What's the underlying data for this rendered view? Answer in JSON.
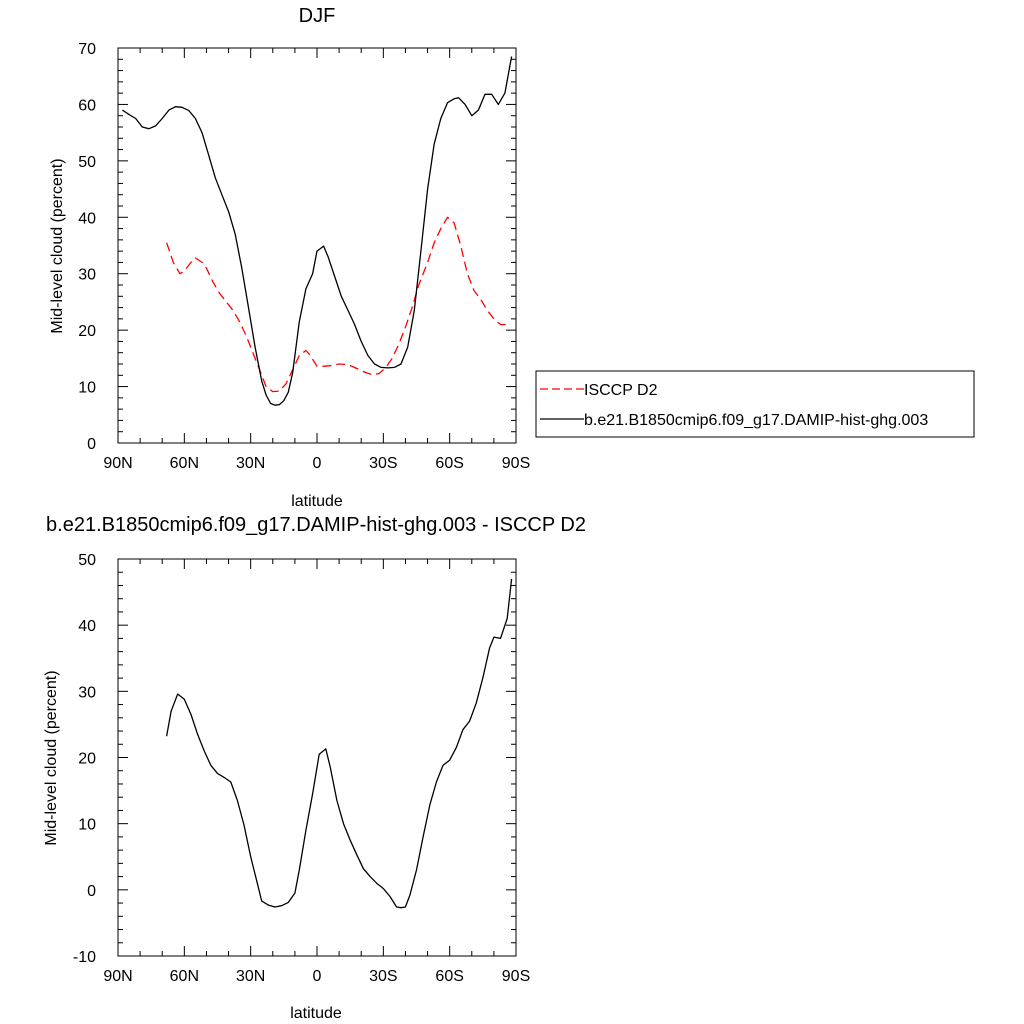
{
  "chart_data": [
    {
      "type": "line",
      "title": "DJF",
      "xlabel": "latitude",
      "ylabel": "Mid-level cloud (percent)",
      "xlim": [
        -90,
        90
      ],
      "ylim": [
        0,
        70
      ],
      "x_ticks": [
        -90,
        -60,
        -30,
        0,
        30,
        60,
        90
      ],
      "x_tick_labels": [
        "90N",
        "60N",
        "30N",
        "0",
        "30S",
        "60S",
        "90S"
      ],
      "y_ticks": [
        0,
        10,
        20,
        30,
        40,
        50,
        60,
        70
      ],
      "y_tick_labels": [
        "0",
        "10",
        "20",
        "30",
        "40",
        "50",
        "60",
        "70"
      ],
      "legend_position": "right",
      "series": [
        {
          "name": "ISCCP D2",
          "color": "#ff0000",
          "dash": "dashed",
          "points": [
            [
              -68,
              35.5
            ],
            [
              -65,
              32
            ],
            [
              -62,
              30
            ],
            [
              -60,
              30.5
            ],
            [
              -57,
              32
            ],
            [
              -55,
              32.8
            ],
            [
              -52,
              32
            ],
            [
              -50,
              31
            ],
            [
              -47,
              28.5
            ],
            [
              -44,
              26.5
            ],
            [
              -41,
              25
            ],
            [
              -38,
              23.5
            ],
            [
              -35,
              21.5
            ],
            [
              -32,
              19
            ],
            [
              -29,
              16
            ],
            [
              -26,
              13
            ],
            [
              -23,
              10
            ],
            [
              -20,
              9.1
            ],
            [
              -17,
              9.2
            ],
            [
              -14,
              10.5
            ],
            [
              -11,
              13
            ],
            [
              -8,
              15.5
            ],
            [
              -5,
              16.4
            ],
            [
              -3,
              15.5
            ],
            [
              0,
              13.6
            ],
            [
              3,
              13.6
            ],
            [
              6,
              13.7
            ],
            [
              10,
              14
            ],
            [
              14,
              13.9
            ],
            [
              18,
              13.2
            ],
            [
              22,
              12.5
            ],
            [
              25,
              12.1
            ],
            [
              28,
              12.3
            ],
            [
              31,
              13.3
            ],
            [
              34,
              15
            ],
            [
              37,
              17.5
            ],
            [
              40,
              20.5
            ],
            [
              43,
              24
            ],
            [
              46,
              28
            ],
            [
              50,
              32
            ],
            [
              53,
              35.5
            ],
            [
              56,
              38
            ],
            [
              59,
              40
            ],
            [
              62,
              39
            ],
            [
              65,
              35
            ],
            [
              68,
              30
            ],
            [
              71,
              27
            ],
            [
              74,
              25.5
            ],
            [
              77,
              23.5
            ],
            [
              80,
              22
            ],
            [
              83,
              21
            ],
            [
              86,
              21
            ]
          ]
        },
        {
          "name": "b.e21.B1850cmip6.f09_g17.DAMIP-hist-ghg.003",
          "color": "#000000",
          "dash": "solid",
          "points": [
            [
              -88,
              59
            ],
            [
              -85,
              58.2
            ],
            [
              -82,
              57.5
            ],
            [
              -79,
              56
            ],
            [
              -76,
              55.7
            ],
            [
              -73,
              56.2
            ],
            [
              -70,
              57.5
            ],
            [
              -67,
              59
            ],
            [
              -64,
              59.6
            ],
            [
              -61,
              59.5
            ],
            [
              -58,
              58.9
            ],
            [
              -55,
              57.5
            ],
            [
              -52,
              55
            ],
            [
              -49,
              51
            ],
            [
              -46,
              47
            ],
            [
              -43,
              44
            ],
            [
              -40,
              41
            ],
            [
              -37,
              37
            ],
            [
              -34,
              31
            ],
            [
              -31,
              24
            ],
            [
              -28,
              17
            ],
            [
              -25,
              11
            ],
            [
              -23,
              8.5
            ],
            [
              -21,
              7
            ],
            [
              -19,
              6.7
            ],
            [
              -17,
              6.8
            ],
            [
              -15,
              7.5
            ],
            [
              -13,
              9
            ],
            [
              -11,
              12.5
            ],
            [
              -8,
              21.5
            ],
            [
              -5,
              27.3
            ],
            [
              -2,
              30
            ],
            [
              0,
              34
            ],
            [
              3,
              34.9
            ],
            [
              5,
              33
            ],
            [
              8,
              29.5
            ],
            [
              11,
              26
            ],
            [
              14,
              23.5
            ],
            [
              17,
              21
            ],
            [
              20,
              18
            ],
            [
              23,
              15.5
            ],
            [
              26,
              14
            ],
            [
              29,
              13.4
            ],
            [
              32,
              13.3
            ],
            [
              35,
              13.4
            ],
            [
              38,
              14
            ],
            [
              41,
              17
            ],
            [
              44,
              23.5
            ],
            [
              47,
              34
            ],
            [
              50,
              45
            ],
            [
              53,
              53
            ],
            [
              56,
              57.5
            ],
            [
              59,
              60.3
            ],
            [
              62,
              61
            ],
            [
              64,
              61.2
            ],
            [
              67,
              60
            ],
            [
              70,
              58
            ],
            [
              73,
              59
            ],
            [
              76,
              61.8
            ],
            [
              79,
              61.8
            ],
            [
              82,
              60
            ],
            [
              85,
              62
            ],
            [
              88,
              68.5
            ]
          ]
        }
      ]
    },
    {
      "type": "line",
      "title": "b.e21.B1850cmip6.f09_g17.DAMIP-hist-ghg.003 - ISCCP D2",
      "xlabel": "latitude",
      "ylabel": "Mid-level cloud (percent)",
      "xlim": [
        -90,
        90
      ],
      "ylim": [
        -10,
        50
      ],
      "x_ticks": [
        -90,
        -60,
        -30,
        0,
        30,
        60,
        90
      ],
      "x_tick_labels": [
        "90N",
        "60N",
        "30N",
        "0",
        "30S",
        "60S",
        "90S"
      ],
      "y_ticks": [
        -10,
        0,
        10,
        20,
        30,
        40,
        50
      ],
      "y_tick_labels": [
        "-10",
        "0",
        "10",
        "20",
        "30",
        "40",
        "50"
      ],
      "series": [
        {
          "color": "#000000",
          "dash": "solid",
          "points": [
            [
              -68,
              23.2
            ],
            [
              -66,
              27
            ],
            [
              -63,
              29.6
            ],
            [
              -60,
              28.8
            ],
            [
              -57,
              26.5
            ],
            [
              -54,
              23.5
            ],
            [
              -51,
              21
            ],
            [
              -48,
              18.8
            ],
            [
              -45,
              17.6
            ],
            [
              -42,
              17
            ],
            [
              -39,
              16.3
            ],
            [
              -36,
              13.5
            ],
            [
              -33,
              9.8
            ],
            [
              -30,
              5
            ],
            [
              -27,
              1
            ],
            [
              -25,
              -1.7
            ],
            [
              -22,
              -2.3
            ],
            [
              -19,
              -2.6
            ],
            [
              -16,
              -2.4
            ],
            [
              -13,
              -1.9
            ],
            [
              -10,
              -0.5
            ],
            [
              -8,
              3
            ],
            [
              -5,
              9
            ],
            [
              -2,
              14.5
            ],
            [
              1,
              20.5
            ],
            [
              4,
              21.3
            ],
            [
              6,
              18.5
            ],
            [
              9,
              13.5
            ],
            [
              12,
              10
            ],
            [
              15,
              7.5
            ],
            [
              18,
              5.3
            ],
            [
              21,
              3.2
            ],
            [
              24,
              2
            ],
            [
              27,
              1
            ],
            [
              30,
              0.2
            ],
            [
              33,
              -1
            ],
            [
              36,
              -2.6
            ],
            [
              38,
              -2.7
            ],
            [
              40,
              -2.6
            ],
            [
              42,
              -0.8
            ],
            [
              45,
              3
            ],
            [
              48,
              8
            ],
            [
              51,
              12.8
            ],
            [
              54,
              16.3
            ],
            [
              57,
              18.8
            ],
            [
              60,
              19.6
            ],
            [
              63,
              21.5
            ],
            [
              66,
              24.2
            ],
            [
              69,
              25.5
            ],
            [
              72,
              28.2
            ],
            [
              75,
              32
            ],
            [
              78,
              36.5
            ],
            [
              80,
              38.2
            ],
            [
              83,
              38
            ],
            [
              86,
              41
            ],
            [
              88,
              47
            ]
          ]
        }
      ]
    }
  ]
}
